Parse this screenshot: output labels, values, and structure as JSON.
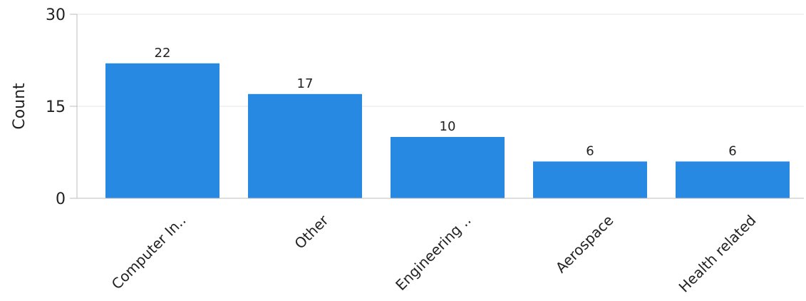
{
  "chart_data": {
    "type": "bar",
    "categories": [
      "Computer In..",
      "Other",
      "Engineering ..",
      "Aerospace",
      "Health related"
    ],
    "values": [
      22,
      17,
      10,
      6,
      6
    ],
    "title": "",
    "xlabel": "",
    "ylabel": "Count",
    "ylim": [
      0,
      30
    ],
    "yticks": [
      0,
      15,
      30
    ],
    "grid": true,
    "legend": "none",
    "colors": {
      "bar": "#2789E1",
      "grid": "#E6E6E6",
      "axis": "#BDBDBD",
      "text": "#222222"
    }
  }
}
